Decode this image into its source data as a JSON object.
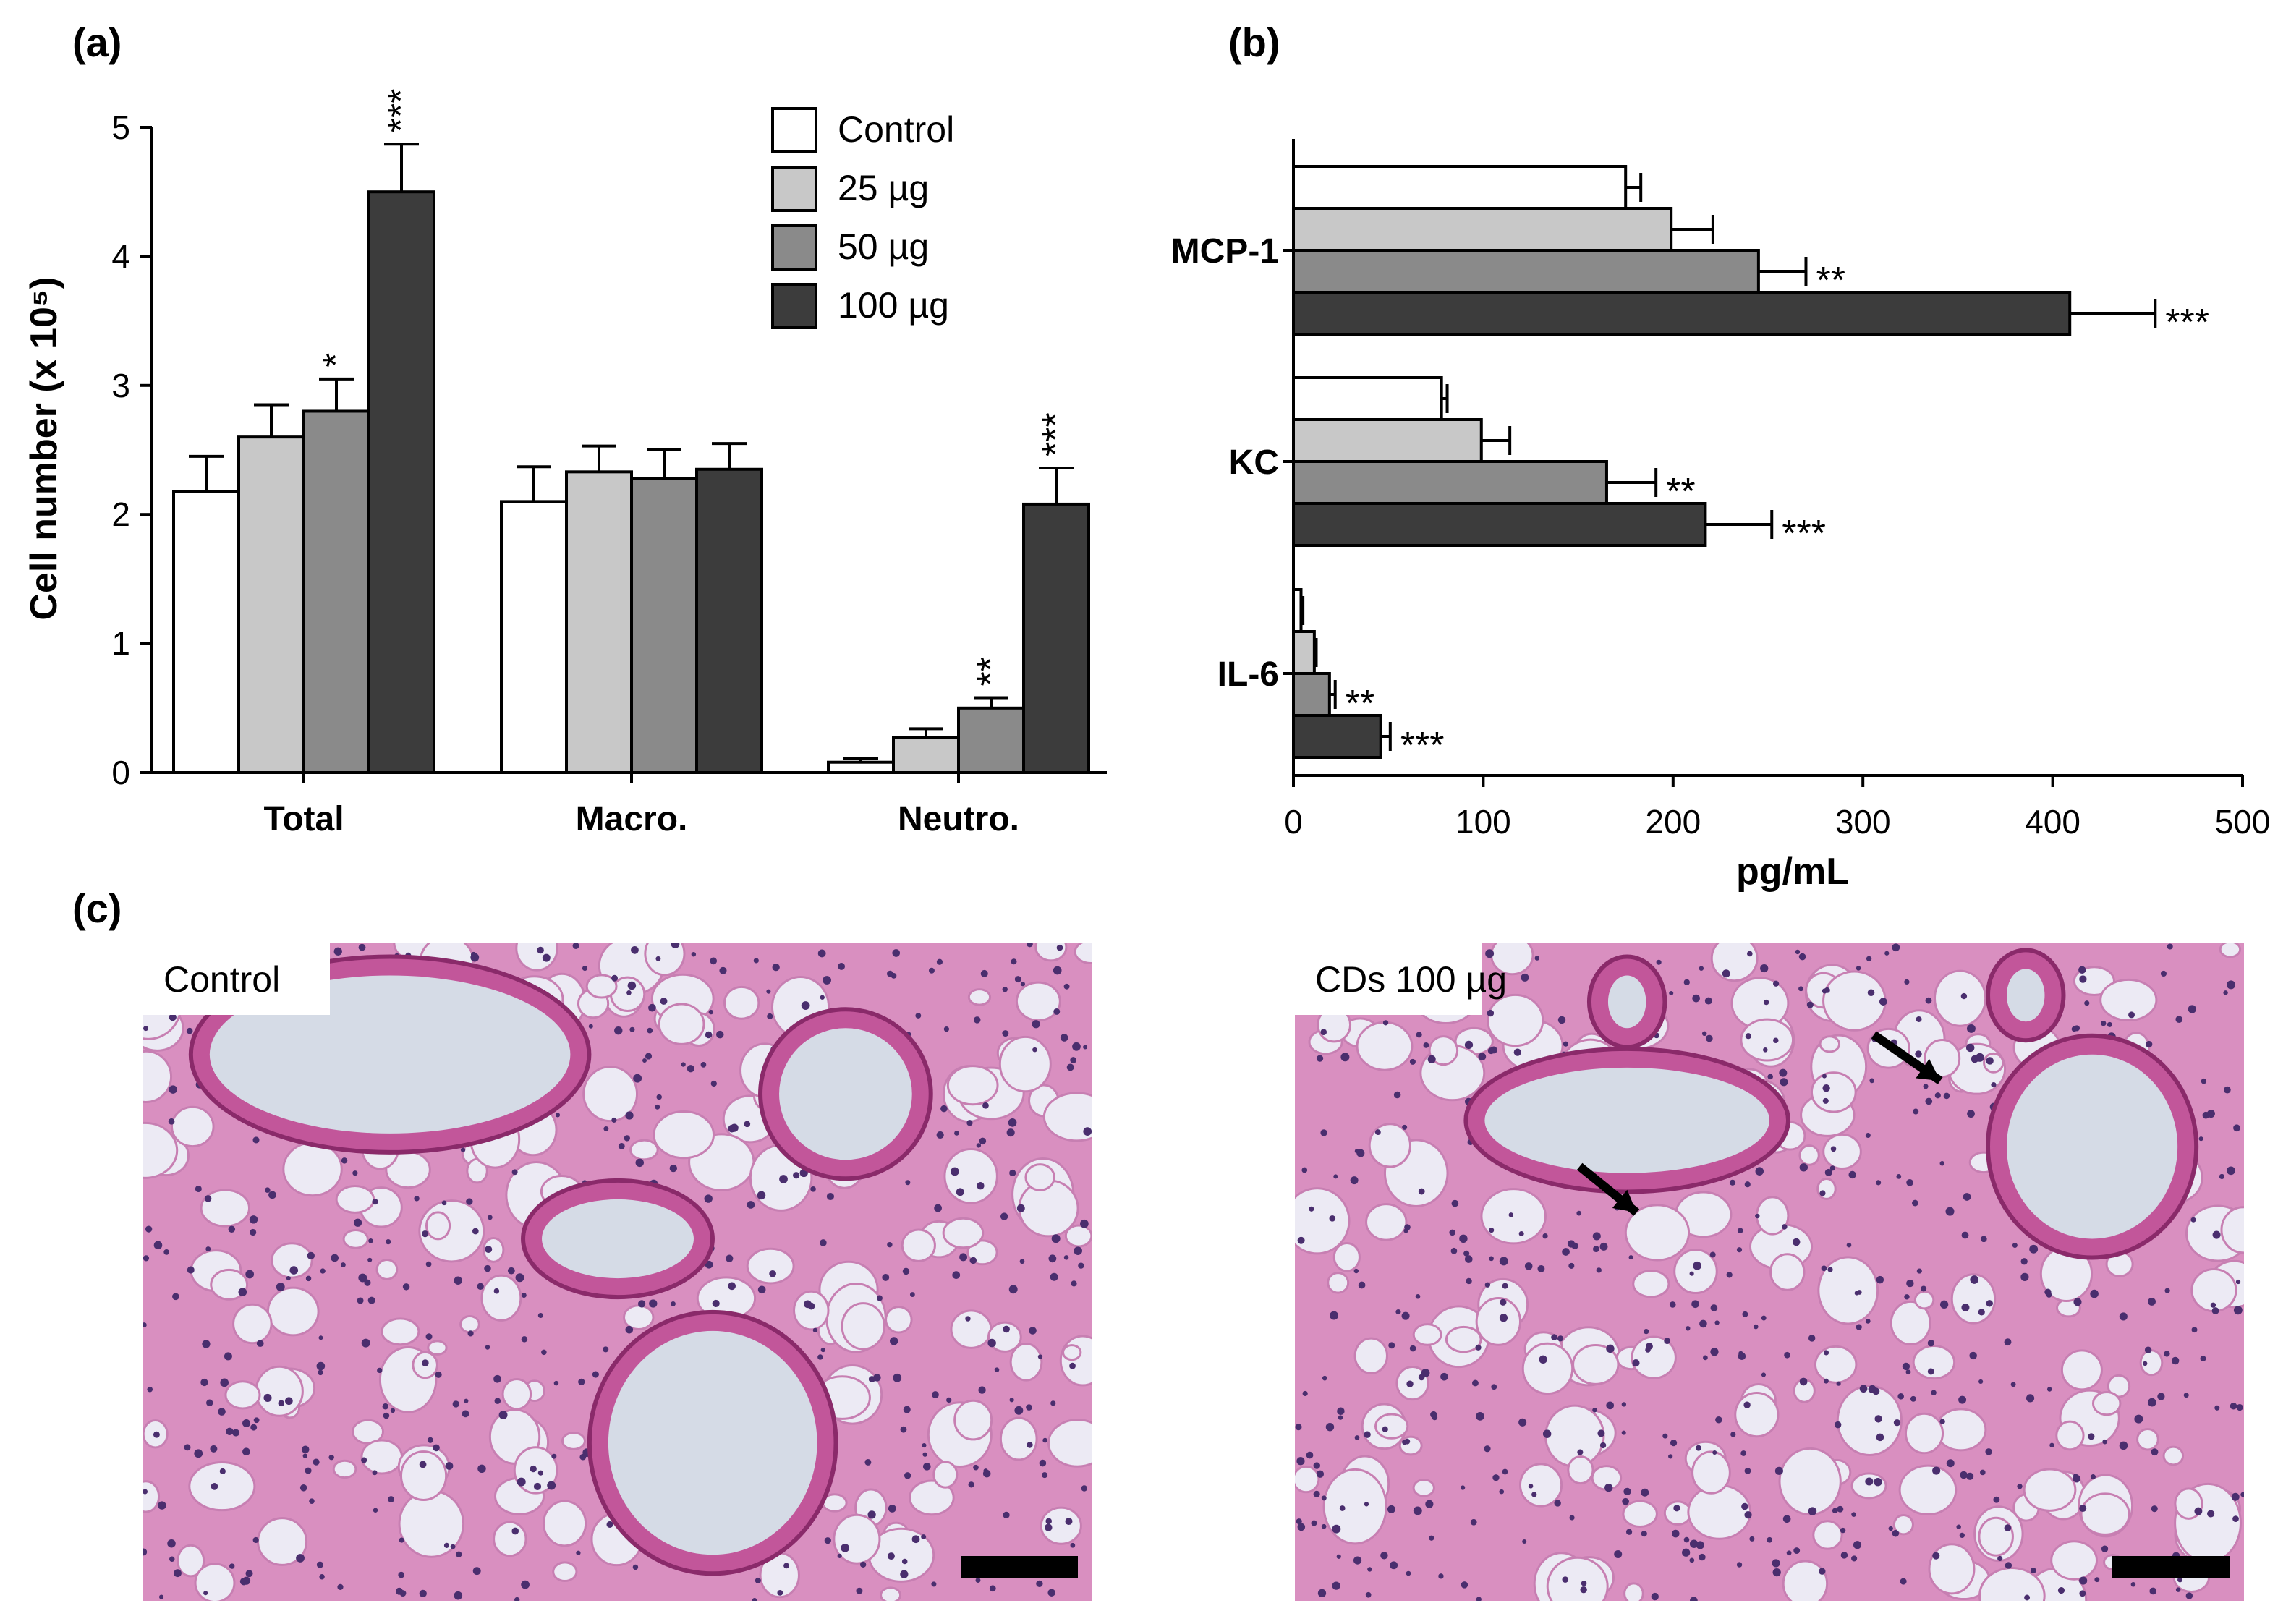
{
  "panels": {
    "a": "(a)",
    "b": "(b)",
    "c": "(c)"
  },
  "colors": {
    "Control": "#ffffff",
    "25 µg": "#c8c8c8",
    "50 µg": "#8a8a8a",
    "100 µg": "#3c3c3c"
  },
  "chart_data": [
    {
      "type": "bar",
      "ylabel": "Cell number (x 10⁵)",
      "ylim": [
        0,
        5
      ],
      "yticks": [
        "0",
        "1",
        "2",
        "3",
        "4",
        "5"
      ],
      "categories": [
        "Total",
        "Macro.",
        "Neutro."
      ],
      "legend": {
        "position": "top-right",
        "entries": [
          "Control",
          "25 µg",
          "50 µg",
          "100 µg"
        ]
      },
      "series": [
        {
          "name": "Control",
          "values": [
            2.18,
            2.1,
            0.08
          ],
          "errors": [
            0.27,
            0.27,
            0.03
          ]
        },
        {
          "name": "25 µg",
          "values": [
            2.6,
            2.33,
            0.27
          ],
          "errors": [
            0.25,
            0.2,
            0.07
          ]
        },
        {
          "name": "50 µg",
          "values": [
            2.8,
            2.28,
            0.5
          ],
          "errors": [
            0.25,
            0.22,
            0.08
          ]
        },
        {
          "name": "100 µg",
          "values": [
            4.5,
            2.35,
            2.08
          ],
          "errors": [
            0.37,
            0.2,
            0.28
          ]
        }
      ],
      "significance": [
        {
          "category": "Total",
          "series": "50 µg",
          "mark": "*"
        },
        {
          "category": "Total",
          "series": "100 µg",
          "mark": "***"
        },
        {
          "category": "Neutro.",
          "series": "50 µg",
          "mark": "**"
        },
        {
          "category": "Neutro.",
          "series": "100 µg",
          "mark": "***"
        }
      ]
    },
    {
      "type": "bar",
      "orientation": "horizontal",
      "xlabel": "pg/mL",
      "xlim": [
        0,
        500
      ],
      "xticks": [
        "0",
        "100",
        "200",
        "300",
        "400",
        "500"
      ],
      "categories": [
        "MCP-1",
        "KC",
        "IL-6"
      ],
      "series": [
        {
          "name": "Control",
          "values": [
            175,
            78,
            4
          ],
          "errors": [
            8,
            3,
            1
          ]
        },
        {
          "name": "25 µg",
          "values": [
            199,
            99,
            11
          ],
          "errors": [
            22,
            15,
            1
          ]
        },
        {
          "name": "50 µg",
          "values": [
            245,
            165,
            19
          ],
          "errors": [
            25,
            26,
            3
          ]
        },
        {
          "name": "100 µg",
          "values": [
            409,
            217,
            46
          ],
          "errors": [
            45,
            35,
            5
          ]
        }
      ],
      "significance": [
        {
          "category": "MCP-1",
          "series": "50 µg",
          "mark": "**"
        },
        {
          "category": "MCP-1",
          "series": "100 µg",
          "mark": "***"
        },
        {
          "category": "KC",
          "series": "50 µg",
          "mark": "**"
        },
        {
          "category": "KC",
          "series": "100 µg",
          "mark": "***"
        },
        {
          "category": "IL-6",
          "series": "50 µg",
          "mark": "**"
        },
        {
          "category": "IL-6",
          "series": "100 µg",
          "mark": "***"
        }
      ]
    }
  ],
  "images": [
    {
      "label": "Control",
      "bg": "#eceaf4",
      "tissue": "#d98fc0",
      "nuclei": "#4a2e6e"
    },
    {
      "label": "CDs 100 µg",
      "bg": "#eceaf4",
      "tissue": "#d98fc0",
      "nuclei": "#4a2e6e"
    }
  ]
}
